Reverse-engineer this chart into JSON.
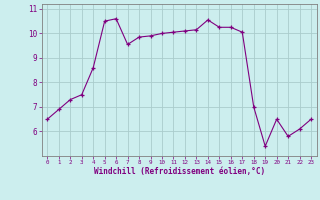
{
  "x": [
    0,
    1,
    2,
    3,
    4,
    5,
    6,
    7,
    8,
    9,
    10,
    11,
    12,
    13,
    14,
    15,
    16,
    17,
    18,
    19,
    20,
    21,
    22,
    23
  ],
  "y": [
    6.5,
    6.9,
    7.3,
    7.5,
    8.6,
    10.5,
    10.6,
    9.55,
    9.85,
    9.9,
    10.0,
    10.05,
    10.1,
    10.15,
    10.55,
    10.25,
    10.25,
    10.05,
    7.0,
    5.4,
    6.5,
    5.8,
    6.1,
    6.5
  ],
  "line_color": "#800080",
  "marker": "+",
  "bg_color": "#cceeee",
  "grid_color": "#aacccc",
  "xlabel": "Windchill (Refroidissement éolien,°C)",
  "xlabel_color": "#800080",
  "tick_color": "#800080",
  "spine_color": "#808080",
  "ylim": [
    5.0,
    11.2
  ],
  "xlim": [
    -0.5,
    23.5
  ],
  "yticks": [
    6,
    7,
    8,
    9,
    10,
    11
  ],
  "xticks": [
    0,
    1,
    2,
    3,
    4,
    5,
    6,
    7,
    8,
    9,
    10,
    11,
    12,
    13,
    14,
    15,
    16,
    17,
    18,
    19,
    20,
    21,
    22,
    23
  ]
}
